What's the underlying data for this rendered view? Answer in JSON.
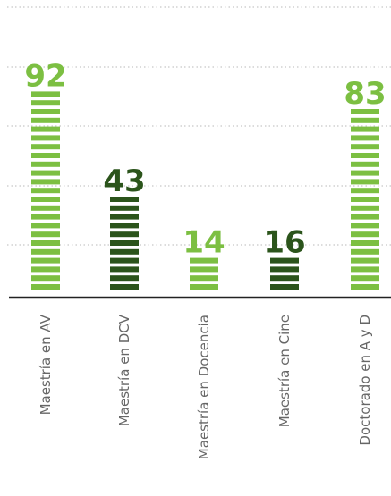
{
  "chart_data": {
    "type": "bar",
    "categories": [
      "Maestría en AV",
      "Maestría en DCV",
      "Maestría en Docencia",
      "Maestría en Cine",
      "Doctorado en A y D"
    ],
    "values": [
      92,
      43,
      14,
      16,
      83
    ],
    "title": "",
    "xlabel": "",
    "ylabel": "",
    "ylim": [
      0,
      100
    ],
    "grid": true,
    "style": "stacked-segment bars"
  },
  "colors": {
    "light_green": "#7cbf42",
    "dark_green": "#2b541b",
    "grid": "#c8c8c8",
    "axis": "#222222",
    "label": "#666666"
  },
  "bar_colors": [
    "#7cbf42",
    "#2b541b",
    "#7cbf42",
    "#2b541b",
    "#7cbf42"
  ]
}
